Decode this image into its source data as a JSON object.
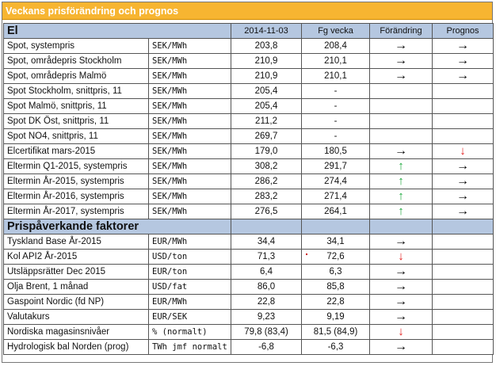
{
  "title": "Veckans prisförändring och prognos",
  "columns": {
    "date": "2014-11-03",
    "previous": "Fg vecka",
    "change": "Förändring",
    "forecast": "Prognos"
  },
  "sections": [
    {
      "name": "El",
      "rows": [
        {
          "label": "Spot, systempris",
          "unit": "SEK/MWh",
          "value": "203,8",
          "prev": "208,4",
          "change": "right",
          "forecast": "right"
        },
        {
          "label": "Spot, områdepris Stockholm",
          "unit": "SEK/MWh",
          "value": "210,9",
          "prev": "210,1",
          "change": "right",
          "forecast": "right"
        },
        {
          "label": "Spot, områdepris Malmö",
          "unit": "SEK/MWh",
          "value": "210,9",
          "prev": "210,1",
          "change": "right",
          "forecast": "right"
        },
        {
          "label": "Spot Stockholm, snittpris,  11",
          "unit": "SEK/MWh",
          "value": "205,4",
          "prev": "-",
          "change": "none",
          "forecast": "none"
        },
        {
          "label": "Spot Malmö, snittpris,  11",
          "unit": "SEK/MWh",
          "value": "205,4",
          "prev": "-",
          "change": "none",
          "forecast": "none"
        },
        {
          "label": "Spot DK Öst, snittpris,  11",
          "unit": "SEK/MWh",
          "value": "211,2",
          "prev": "-",
          "change": "none",
          "forecast": "none"
        },
        {
          "label": "Spot NO4, snittpris,  11",
          "unit": "SEK/MWh",
          "value": "269,7",
          "prev": "-",
          "change": "none",
          "forecast": "none"
        },
        {
          "label": "Elcertifikat mars-2015",
          "unit": "SEK/MWh",
          "value": "179,0",
          "prev": "180,5",
          "change": "right",
          "forecast": "down"
        },
        {
          "label": "Eltermin Q1-2015, systempris",
          "unit": "SEK/MWh",
          "value": "308,2",
          "prev": "291,7",
          "change": "up",
          "forecast": "right"
        },
        {
          "label": "Eltermin År-2015, systempris",
          "unit": "SEK/MWh",
          "value": "286,2",
          "prev": "274,4",
          "change": "up",
          "forecast": "right"
        },
        {
          "label": "Eltermin År-2016, systempris",
          "unit": "SEK/MWh",
          "value": "283,2",
          "prev": "271,4",
          "change": "up",
          "forecast": "right"
        },
        {
          "label": "Eltermin År-2017, systempris",
          "unit": "SEK/MWh",
          "value": "276,5",
          "prev": "264,1",
          "change": "up",
          "forecast": "right"
        }
      ]
    },
    {
      "name": "Prispåverkande faktorer",
      "rows": [
        {
          "label": "Tyskland Base År-2015",
          "unit": "EUR/MWh",
          "value": "34,4",
          "prev": "34,1",
          "change": "right",
          "forecast": "none"
        },
        {
          "label": "Kol API2 År-2015",
          "unit": "USD/ton",
          "value": "71,3",
          "prev": "72,6",
          "change": "down",
          "forecast": "none"
        },
        {
          "label": "Utsläppsrätter Dec 2015",
          "unit": "EUR/ton",
          "value": "6,4",
          "prev": "6,3",
          "change": "right",
          "forecast": "none"
        },
        {
          "label": "Olja Brent, 1 månad",
          "unit": "USD/fat",
          "value": "86,0",
          "prev": "85,8",
          "change": "right",
          "forecast": "none"
        },
        {
          "label": "Gaspoint Nordic (fd NP)",
          "unit": "EUR/MWh",
          "value": "22,8",
          "prev": "22,8",
          "change": "right",
          "forecast": "none"
        },
        {
          "label": "Valutakurs",
          "unit": "EUR/SEK",
          "value": "9,23",
          "prev": "9,19",
          "change": "right",
          "forecast": "none"
        },
        {
          "label": "Nordiska magasinsnivåer",
          "unit": "%   (normalt)",
          "value": "79,8 (83,4)",
          "prev": "81,5 (84,9)",
          "change": "down",
          "forecast": "none"
        },
        {
          "label": "Hydrologisk bal Norden (prog)",
          "unit": "TWh jmf normalt",
          "value": "-6,8",
          "prev": "-6,3",
          "change": "right",
          "forecast": "none"
        }
      ]
    }
  ],
  "arrow_glyphs": {
    "right": "→",
    "up": "↑",
    "down": "↓",
    "none": ""
  },
  "colors": {
    "title_bg": "#f7b531",
    "section_bg": "#b5c7e0",
    "up": "#19a83a",
    "down": "#e31d1d"
  }
}
